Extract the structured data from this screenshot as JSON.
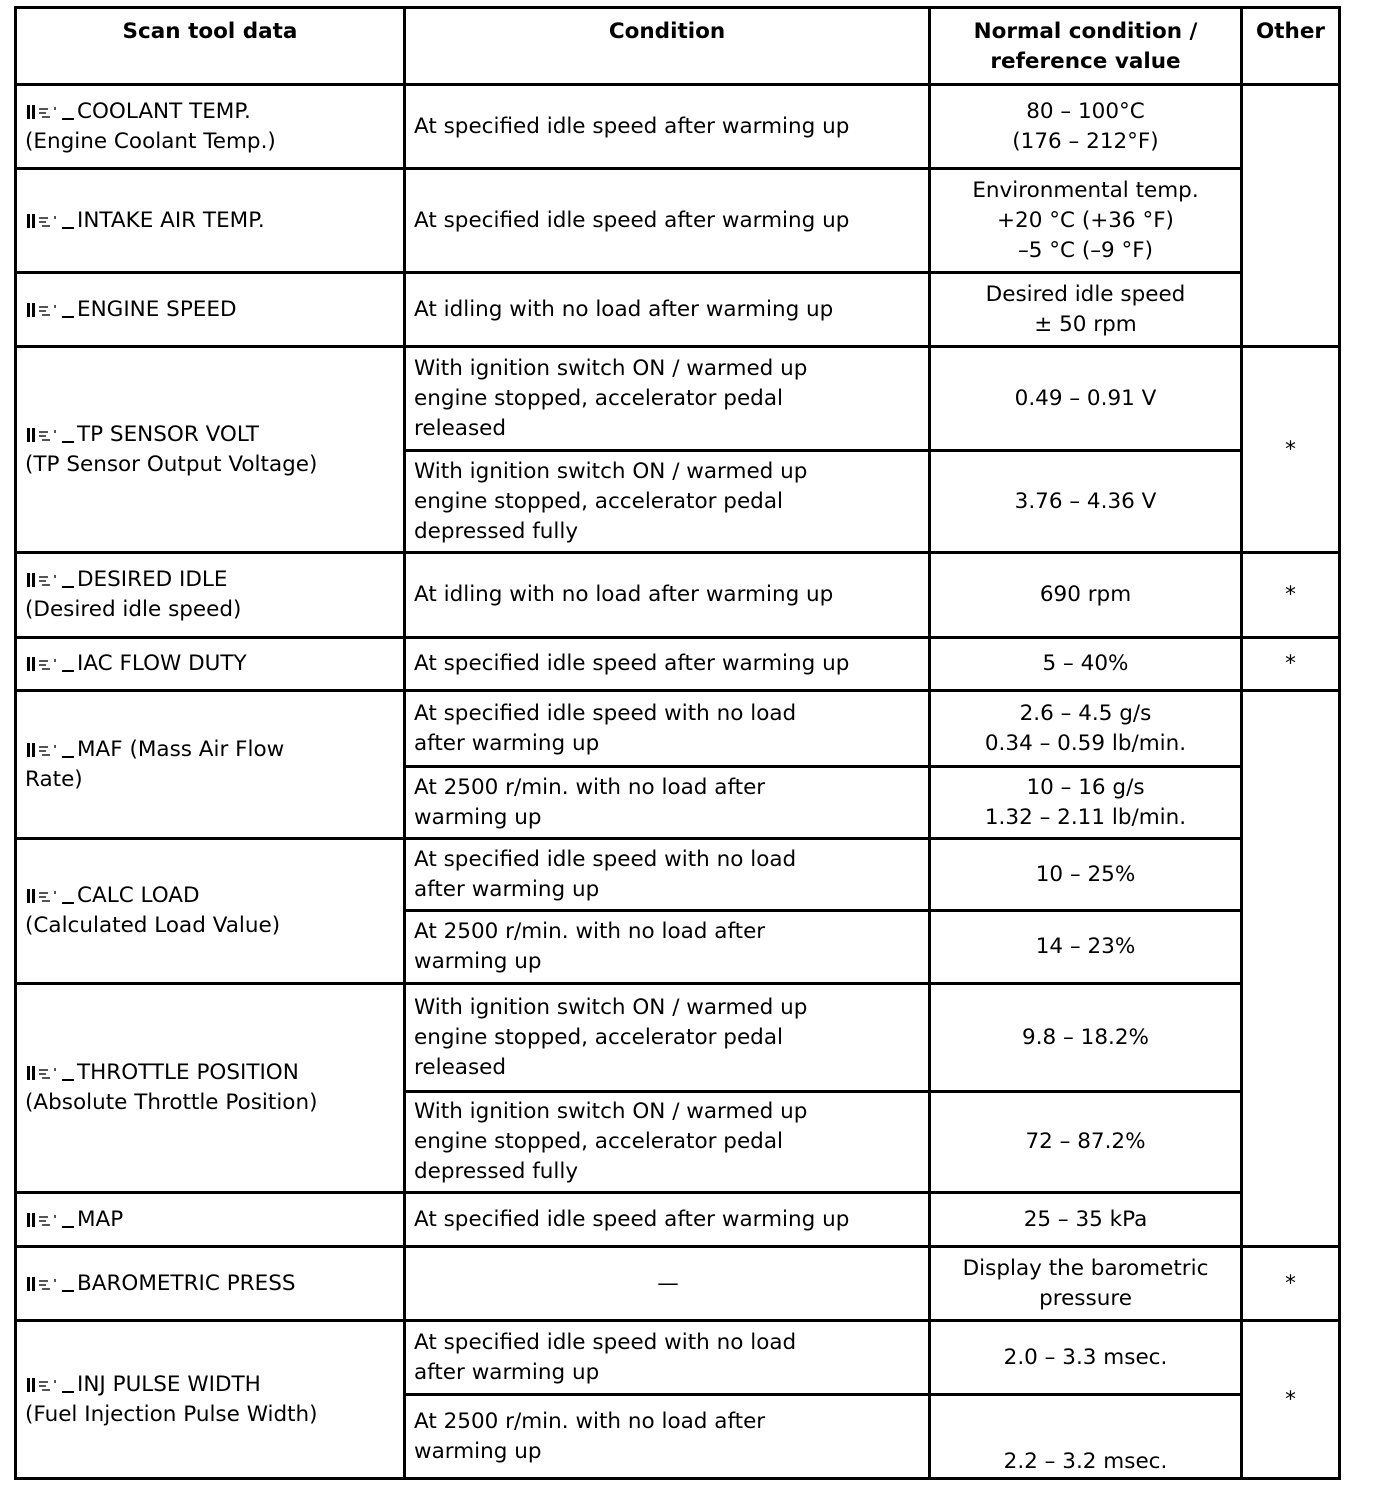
{
  "icon": "scan-item-icon",
  "header": {
    "scan": "Scan tool data",
    "condition": "Condition",
    "value": "Normal condition /\nreference value",
    "other": "Other"
  },
  "rows": [
    {
      "scan": "COOLANT TEMP.\n(Engine Coolant Temp.)",
      "cond": [
        "At specified idle speed after warming up"
      ],
      "val": [
        "80 – 100°C\n(176 – 212°F)"
      ],
      "other": ""
    },
    {
      "scan": "INTAKE AIR TEMP.",
      "cond": [
        "At specified idle speed after warming up"
      ],
      "val": [
        "Environmental temp.\n+20 °C (+36 °F)\n–5 °C (–9 °F)"
      ]
    },
    {
      "scan": "ENGINE SPEED",
      "cond": [
        "At idling with no load after warming up"
      ],
      "val": [
        "Desired idle speed\n± 50 rpm"
      ]
    },
    {
      "scan": "TP SENSOR VOLT\n(TP Sensor Output Voltage)",
      "cond": [
        "With ignition switch ON / warmed up\nengine stopped, accelerator pedal\nreleased",
        "With ignition switch ON / warmed up\nengine stopped, accelerator pedal\ndepressed fully"
      ],
      "val": [
        "0.49 – 0.91 V",
        "3.76 – 4.36 V"
      ],
      "other": "*"
    },
    {
      "scan": "DESIRED IDLE\n(Desired idle speed)",
      "cond": [
        "At idling with no load after warming up"
      ],
      "val": [
        "690 rpm"
      ],
      "other": "*"
    },
    {
      "scan": "IAC FLOW DUTY",
      "cond": [
        "At specified idle speed after warming up"
      ],
      "val": [
        "5 – 40%"
      ],
      "other": "*"
    },
    {
      "scan": "MAF (Mass Air Flow\nRate)",
      "cond": [
        "At specified idle speed with no load\nafter warming up",
        "At 2500 r/min. with no load after\nwarming up"
      ],
      "val": [
        "2.6 – 4.5 g/s\n0.34 – 0.59 lb/min.",
        "10 – 16 g/s\n1.32 – 2.11 lb/min."
      ],
      "other": ""
    },
    {
      "scan": "CALC LOAD\n(Calculated Load Value)",
      "cond": [
        "At specified idle speed with no load\nafter warming up",
        "At 2500 r/min. with no load after\nwarming up"
      ],
      "val": [
        "10 – 25%",
        "14 – 23%"
      ]
    },
    {
      "scan": "THROTTLE POSITION\n(Absolute Throttle Position)",
      "cond": [
        "With ignition switch ON / warmed up\nengine stopped, accelerator pedal\nreleased",
        "With ignition switch ON / warmed up\nengine stopped, accelerator pedal\ndepressed fully"
      ],
      "val": [
        "9.8 – 18.2%",
        "72 – 87.2%"
      ]
    },
    {
      "scan": "MAP",
      "cond": [
        "At specified idle speed after warming up"
      ],
      "val": [
        "25 – 35 kPa"
      ]
    },
    {
      "scan": "BAROMETRIC PRESS",
      "cond": [
        "—"
      ],
      "val": [
        "Display the barometric\npressure"
      ],
      "other": "*"
    },
    {
      "scan": "INJ PULSE WIDTH\n(Fuel Injection Pulse Width)",
      "cond": [
        "At specified idle speed with no load\nafter warming up",
        "At 2500 r/min. with no load after\nwarming up"
      ],
      "val": [
        "2.0 – 3.3 msec.",
        "2.2 – 3.2 msec."
      ],
      "other": "*"
    }
  ]
}
